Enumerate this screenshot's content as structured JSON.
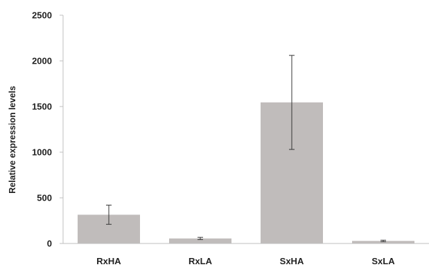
{
  "chart_data": {
    "type": "bar",
    "categories": [
      "RxHA",
      "RxLA",
      "SxHA",
      "SxLA"
    ],
    "values": [
      315,
      55,
      1545,
      28
    ],
    "error": [
      105,
      12,
      515,
      8
    ],
    "title": "",
    "xlabel": "",
    "ylabel": "Relative expression levels",
    "ylim": [
      0,
      2500
    ],
    "yticks": [
      0,
      500,
      1000,
      1500,
      2000,
      2500
    ],
    "grid": false,
    "legend": "none",
    "colors": {
      "bar": "#c0bcbb",
      "error_bar": "#333333",
      "axis": "#bfbfbf",
      "text": "#222222"
    }
  }
}
